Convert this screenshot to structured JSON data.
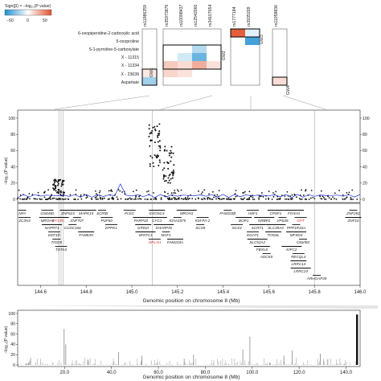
{
  "colors": {
    "neg": "#1f8fd1",
    "pos": "#e2502a",
    "neg_light": "#c6e4f4",
    "pos_light": "#f6cdbd",
    "dot": "#111111",
    "blue_line": "#1a2bd6",
    "highlight_gene": "#d5332b",
    "hline": "#bbbbbb"
  },
  "legend": {
    "title": "Sign(β) × −log₁₀(P value)",
    "ticks": [
      "−50",
      "0",
      "50"
    ]
  },
  "heatmap": {
    "columns": [
      "rs11986259",
      "rs35973875",
      "rs10098437",
      "rs12542060",
      "rs34107654",
      "rs1777184",
      "rs3935209",
      "rs11058836"
    ],
    "rows": [
      "6-oxopiperidine-2-carboxylic acid",
      "5-oxoproline",
      "S-1-pyrroline-5-carboxylate",
      "X - 11315",
      "X - 11334",
      "X - 23639",
      "Aspartate"
    ],
    "cells": [
      {
        "row": 0,
        "col": 5,
        "value": 55
      },
      {
        "row": 0,
        "col": 6,
        "value": -8
      },
      {
        "row": 1,
        "col": 6,
        "value": -50
      },
      {
        "row": 2,
        "col": 3,
        "value": -20
      },
      {
        "row": 3,
        "col": 2,
        "value": -12
      },
      {
        "row": 3,
        "col": 3,
        "value": -40
      },
      {
        "row": 4,
        "col": 1,
        "value": 18
      },
      {
        "row": 4,
        "col": 2,
        "value": 12
      },
      {
        "row": 4,
        "col": 3,
        "value": 28
      },
      {
        "row": 4,
        "col": 4,
        "value": 10
      },
      {
        "row": 5,
        "col": 0,
        "value": 8
      },
      {
        "row": 5,
        "col": 1,
        "value": 14
      },
      {
        "row": 5,
        "col": 2,
        "value": 10
      },
      {
        "row": 6,
        "col": 0,
        "value": -25
      },
      {
        "row": 6,
        "col": 7,
        "value": 12
      }
    ],
    "gws": [
      "GW1",
      "GW2",
      "GW3",
      "GW4"
    ]
  },
  "chart_data": [
    {
      "type": "scatter",
      "title": "",
      "xlabel": "Genomic position on chromosome 8 (Mb)",
      "ylabel": "−log₁₀(P value)",
      "xlim": [
        144.5,
        146.0
      ],
      "ylim": [
        0,
        100
      ],
      "xticks": [
        "144.6",
        "144.8",
        "145.0",
        "145.2",
        "145.4",
        "145.6",
        "145.8",
        "146.0"
      ],
      "yticks": [
        "0",
        "20",
        "40",
        "60",
        "80",
        "100"
      ],
      "right_yticks": [
        "0",
        "20",
        "40",
        "60",
        "80",
        "100"
      ],
      "vlines_x": [
        144.68,
        144.69,
        144.7,
        145.09,
        145.8
      ],
      "clusters": [
        {
          "x": 144.68,
          "min": 8,
          "max": 25
        },
        {
          "x": 145.1,
          "min": 40,
          "max": 95
        },
        {
          "x": 145.16,
          "min": 20,
          "max": 68
        }
      ],
      "genes": [
        {
          "name": "NFA",
          "x": 144.52,
          "row": 0
        },
        {
          "name": "GSDMD",
          "x": 144.63,
          "row": 0
        },
        {
          "name": "ZNF623",
          "x": 144.72,
          "row": 0
        },
        {
          "name": "MAPK15",
          "x": 144.8,
          "row": 0
        },
        {
          "name": "SCRIB",
          "x": 144.87,
          "row": 0
        },
        {
          "name": "PLEC",
          "x": 144.99,
          "row": 0
        },
        {
          "name": "EXOSC4",
          "x": 145.11,
          "row": 0
        },
        {
          "name": "MROH1",
          "x": 145.24,
          "row": 0
        },
        {
          "name": "FAM203B",
          "x": 145.42,
          "row": 0
        },
        {
          "name": "HSF1",
          "x": 145.53,
          "row": 0
        },
        {
          "name": "CPSF1",
          "x": 145.63,
          "row": 0
        },
        {
          "name": "FOXH1",
          "x": 145.71,
          "row": 0
        },
        {
          "name": "ZNF251",
          "x": 145.97,
          "row": 0
        },
        {
          "name": "ZC3H3",
          "x": 144.53,
          "row": 1
        },
        {
          "name": "MROH6",
          "x": 144.63,
          "row": 1
        },
        {
          "name": "PYCRL",
          "x": 144.68,
          "row": 1,
          "highlight": true
        },
        {
          "name": "ZNF707",
          "x": 144.76,
          "row": 1
        },
        {
          "name": "PUF60",
          "x": 144.89,
          "row": 1
        },
        {
          "name": "PARP10",
          "x": 145.04,
          "row": 1
        },
        {
          "name": "CYC1",
          "x": 145.11,
          "row": 1
        },
        {
          "name": "KIAA1875",
          "x": 145.2,
          "row": 1
        },
        {
          "name": "KM-PA-2",
          "x": 145.31,
          "row": 1
        },
        {
          "name": "BOP1",
          "x": 145.49,
          "row": 1
        },
        {
          "name": "NRBP2",
          "x": 145.58,
          "row": 1
        },
        {
          "name": "VPS28",
          "x": 145.66,
          "row": 1
        },
        {
          "name": "GPT",
          "x": 145.74,
          "row": 1,
          "highlight": true
        },
        {
          "name": "ZNF16",
          "x": 145.97,
          "row": 1
        },
        {
          "name": "NAPRT1",
          "x": 144.65,
          "row": 2
        },
        {
          "name": "CCDC166",
          "x": 144.74,
          "row": 2
        },
        {
          "name": "EPPK1",
          "x": 144.91,
          "row": 2
        },
        {
          "name": "GRINA",
          "x": 145.05,
          "row": 2
        },
        {
          "name": "SHARPIN",
          "x": 145.14,
          "row": 2
        },
        {
          "name": "SCX8",
          "x": 145.3,
          "row": 2
        },
        {
          "name": "SCX4",
          "x": 145.46,
          "row": 2
        },
        {
          "name": "SCRT1",
          "x": 145.55,
          "row": 2
        },
        {
          "name": "SLC39A4",
          "x": 145.63,
          "row": 2
        },
        {
          "name": "PPP1R16A",
          "x": 145.72,
          "row": 2
        },
        {
          "name": "EEF1D",
          "x": 144.66,
          "row": 3
        },
        {
          "name": "FAM83H",
          "x": 144.8,
          "row": 3
        },
        {
          "name": "SPATC1",
          "x": 145.06,
          "row": 3
        },
        {
          "name": "MAF1",
          "x": 145.15,
          "row": 3
        },
        {
          "name": "DGAT1",
          "x": 145.53,
          "row": 3
        },
        {
          "name": "TONSL",
          "x": 145.62,
          "row": 3
        },
        {
          "name": "MFSD3",
          "x": 145.72,
          "row": 3
        },
        {
          "name": "TIGD5",
          "x": 144.67,
          "row": 4
        },
        {
          "name": "OPLAH",
          "x": 145.1,
          "row": 4,
          "highlight": true
        },
        {
          "name": "FAM203A",
          "x": 145.19,
          "row": 4
        },
        {
          "name": "SLC52A2",
          "x": 145.55,
          "row": 4
        },
        {
          "name": "C8orf82",
          "x": 145.75,
          "row": 4
        },
        {
          "name": "TSTA3",
          "x": 144.69,
          "row": 5
        },
        {
          "name": "FBXL6",
          "x": 145.57,
          "row": 5
        },
        {
          "name": "KIFC2",
          "x": 145.7,
          "row": 5
        },
        {
          "name": "ADCK5",
          "x": 145.59,
          "row": 6
        },
        {
          "name": "RECQL4",
          "x": 145.73,
          "row": 6
        },
        {
          "name": "LRRC14",
          "x": 145.73,
          "row": 7
        },
        {
          "name": "LRRC24",
          "x": 145.74,
          "row": 8
        },
        {
          "name": "ARHGAP39",
          "x": 145.81,
          "row": 9
        }
      ],
      "labels_row1_extra": [
        {
          "name": "GSDMD",
          "x": 144.63
        },
        {
          "name": "FOXH1",
          "x": 145.71
        }
      ],
      "extra_genes": [
        {
          "name": "MAPK15",
          "x": 144.8
        },
        {
          "name": "SLC39A13",
          "x": 145.59
        },
        {
          "name": "LRRC14",
          "x": 145.73
        },
        {
          "name": "C1HR1",
          "x": 145.72
        },
        {
          "name": "FAM203B",
          "x": 145.42
        }
      ]
    },
    {
      "type": "scatter",
      "title": "",
      "xlabel": "Genomic position on chromosome 8 (Mb)",
      "ylabel": "−log₁₀(P value)",
      "xlim": [
        0,
        146
      ],
      "ylim": [
        0,
        100
      ],
      "xticks": [
        "20.0",
        "40.0",
        "60.0",
        "80.0",
        "100.0",
        "120.0",
        "140.0"
      ],
      "yticks": [
        "0",
        "20",
        "40",
        "60",
        "80",
        "100"
      ],
      "peaks": [
        {
          "x": 19.8,
          "y": 70
        },
        {
          "x": 20.5,
          "y": 40
        },
        {
          "x": 43.0,
          "y": 25
        },
        {
          "x": 53.0,
          "y": 18
        },
        {
          "x": 71.0,
          "y": 12
        },
        {
          "x": 75.0,
          "y": 20
        },
        {
          "x": 96.0,
          "y": 30
        },
        {
          "x": 99.0,
          "y": 55
        },
        {
          "x": 113.5,
          "y": 18
        },
        {
          "x": 117.0,
          "y": 28
        },
        {
          "x": 129.0,
          "y": 22
        },
        {
          "x": 144.7,
          "y": 98
        }
      ]
    }
  ]
}
